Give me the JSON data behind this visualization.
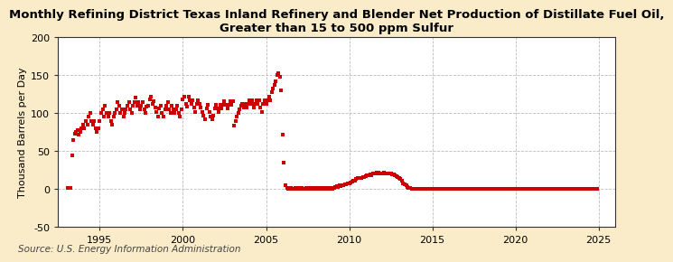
{
  "title": "Monthly Refining District Texas Inland Refinery and Blender Net Production of Distillate Fuel Oil,\nGreater than 15 to 500 ppm Sulfur",
  "ylabel": "Thousand Barrels per Day",
  "source": "Source: U.S. Energy Information Administration",
  "outer_bg": "#faecc8",
  "plot_bg": "#ffffff",
  "marker_color": "#cc0000",
  "ylim": [
    -50,
    200
  ],
  "yticks": [
    -50,
    0,
    50,
    100,
    150,
    200
  ],
  "xlim_start": 1992.5,
  "xlim_end": 2026.0,
  "xticks": [
    1995,
    2000,
    2005,
    2010,
    2015,
    2020,
    2025
  ],
  "title_fontsize": 9.5,
  "ylabel_fontsize": 8.0,
  "source_fontsize": 7.5,
  "tick_fontsize": 8,
  "series": [
    [
      1993.08,
      1
    ],
    [
      1993.17,
      1
    ],
    [
      1993.25,
      1
    ],
    [
      1993.33,
      44
    ],
    [
      1993.42,
      65
    ],
    [
      1993.5,
      73
    ],
    [
      1993.58,
      75
    ],
    [
      1993.67,
      78
    ],
    [
      1993.75,
      72
    ],
    [
      1993.83,
      75
    ],
    [
      1993.92,
      80
    ],
    [
      1994.0,
      85
    ],
    [
      1994.08,
      80
    ],
    [
      1994.17,
      90
    ],
    [
      1994.25,
      85
    ],
    [
      1994.33,
      95
    ],
    [
      1994.42,
      100
    ],
    [
      1994.5,
      90
    ],
    [
      1994.58,
      85
    ],
    [
      1994.67,
      90
    ],
    [
      1994.75,
      80
    ],
    [
      1994.83,
      75
    ],
    [
      1994.92,
      80
    ],
    [
      1995.0,
      90
    ],
    [
      1995.08,
      100
    ],
    [
      1995.17,
      105
    ],
    [
      1995.25,
      95
    ],
    [
      1995.33,
      110
    ],
    [
      1995.42,
      100
    ],
    [
      1995.5,
      95
    ],
    [
      1995.58,
      100
    ],
    [
      1995.67,
      90
    ],
    [
      1995.75,
      85
    ],
    [
      1995.83,
      95
    ],
    [
      1995.92,
      100
    ],
    [
      1996.0,
      105
    ],
    [
      1996.08,
      115
    ],
    [
      1996.17,
      110
    ],
    [
      1996.25,
      100
    ],
    [
      1996.33,
      105
    ],
    [
      1996.42,
      95
    ],
    [
      1996.5,
      100
    ],
    [
      1996.58,
      105
    ],
    [
      1996.67,
      110
    ],
    [
      1996.75,
      115
    ],
    [
      1996.83,
      105
    ],
    [
      1996.92,
      100
    ],
    [
      1997.0,
      110
    ],
    [
      1997.08,
      115
    ],
    [
      1997.17,
      120
    ],
    [
      1997.25,
      110
    ],
    [
      1997.33,
      115
    ],
    [
      1997.42,
      105
    ],
    [
      1997.5,
      110
    ],
    [
      1997.58,
      115
    ],
    [
      1997.67,
      105
    ],
    [
      1997.75,
      100
    ],
    [
      1997.83,
      108
    ],
    [
      1997.92,
      110
    ],
    [
      1998.0,
      118
    ],
    [
      1998.08,
      122
    ],
    [
      1998.17,
      112
    ],
    [
      1998.25,
      116
    ],
    [
      1998.33,
      107
    ],
    [
      1998.42,
      102
    ],
    [
      1998.5,
      96
    ],
    [
      1998.58,
      106
    ],
    [
      1998.67,
      110
    ],
    [
      1998.75,
      100
    ],
    [
      1998.83,
      95
    ],
    [
      1998.92,
      105
    ],
    [
      1999.0,
      110
    ],
    [
      1999.08,
      115
    ],
    [
      1999.17,
      105
    ],
    [
      1999.25,
      100
    ],
    [
      1999.33,
      110
    ],
    [
      1999.42,
      105
    ],
    [
      1999.5,
      100
    ],
    [
      1999.58,
      105
    ],
    [
      1999.67,
      110
    ],
    [
      1999.75,
      100
    ],
    [
      1999.83,
      95
    ],
    [
      1999.92,
      105
    ],
    [
      2000.0,
      118
    ],
    [
      2000.08,
      122
    ],
    [
      2000.17,
      112
    ],
    [
      2000.25,
      108
    ],
    [
      2000.33,
      122
    ],
    [
      2000.42,
      117
    ],
    [
      2000.5,
      112
    ],
    [
      2000.58,
      117
    ],
    [
      2000.67,
      107
    ],
    [
      2000.75,
      102
    ],
    [
      2000.83,
      112
    ],
    [
      2000.92,
      117
    ],
    [
      2001.0,
      112
    ],
    [
      2001.08,
      107
    ],
    [
      2001.17,
      102
    ],
    [
      2001.25,
      97
    ],
    [
      2001.33,
      92
    ],
    [
      2001.42,
      106
    ],
    [
      2001.5,
      111
    ],
    [
      2001.58,
      101
    ],
    [
      2001.67,
      96
    ],
    [
      2001.75,
      92
    ],
    [
      2001.83,
      97
    ],
    [
      2001.92,
      106
    ],
    [
      2002.0,
      111
    ],
    [
      2002.08,
      106
    ],
    [
      2002.17,
      101
    ],
    [
      2002.25,
      111
    ],
    [
      2002.33,
      106
    ],
    [
      2002.42,
      111
    ],
    [
      2002.5,
      116
    ],
    [
      2002.58,
      111
    ],
    [
      2002.67,
      106
    ],
    [
      2002.75,
      111
    ],
    [
      2002.83,
      116
    ],
    [
      2002.92,
      111
    ],
    [
      2003.0,
      116
    ],
    [
      2003.08,
      84
    ],
    [
      2003.17,
      90
    ],
    [
      2003.25,
      95
    ],
    [
      2003.33,
      100
    ],
    [
      2003.42,
      105
    ],
    [
      2003.5,
      110
    ],
    [
      2003.58,
      112
    ],
    [
      2003.67,
      107
    ],
    [
      2003.75,
      112
    ],
    [
      2003.83,
      107
    ],
    [
      2003.92,
      112
    ],
    [
      2004.0,
      117
    ],
    [
      2004.08,
      112
    ],
    [
      2004.17,
      117
    ],
    [
      2004.25,
      107
    ],
    [
      2004.33,
      112
    ],
    [
      2004.42,
      117
    ],
    [
      2004.5,
      112
    ],
    [
      2004.58,
      117
    ],
    [
      2004.67,
      107
    ],
    [
      2004.75,
      102
    ],
    [
      2004.83,
      112
    ],
    [
      2004.92,
      117
    ],
    [
      2005.0,
      112
    ],
    [
      2005.08,
      117
    ],
    [
      2005.17,
      122
    ],
    [
      2005.25,
      117
    ],
    [
      2005.33,
      127
    ],
    [
      2005.42,
      132
    ],
    [
      2005.5,
      137
    ],
    [
      2005.58,
      142
    ],
    [
      2005.67,
      150
    ],
    [
      2005.75,
      153
    ],
    [
      2005.83,
      148
    ],
    [
      2005.92,
      130
    ],
    [
      2006.0,
      72
    ],
    [
      2006.08,
      35
    ],
    [
      2006.17,
      5
    ],
    [
      2006.25,
      2
    ],
    [
      2006.33,
      0
    ],
    [
      2006.42,
      0
    ],
    [
      2006.5,
      1
    ],
    [
      2006.58,
      0
    ],
    [
      2006.67,
      0
    ],
    [
      2006.75,
      1
    ],
    [
      2006.83,
      0
    ],
    [
      2006.92,
      0
    ],
    [
      2007.0,
      1
    ],
    [
      2007.08,
      0
    ],
    [
      2007.17,
      1
    ],
    [
      2007.25,
      0
    ],
    [
      2007.33,
      0
    ],
    [
      2007.42,
      1
    ],
    [
      2007.5,
      0
    ],
    [
      2007.58,
      1
    ],
    [
      2007.67,
      0
    ],
    [
      2007.75,
      1
    ],
    [
      2007.83,
      0
    ],
    [
      2007.92,
      1
    ],
    [
      2008.0,
      0
    ],
    [
      2008.08,
      1
    ],
    [
      2008.17,
      0
    ],
    [
      2008.25,
      1
    ],
    [
      2008.33,
      0
    ],
    [
      2008.42,
      1
    ],
    [
      2008.5,
      0
    ],
    [
      2008.58,
      1
    ],
    [
      2008.67,
      0
    ],
    [
      2008.75,
      1
    ],
    [
      2008.83,
      0
    ],
    [
      2008.92,
      1
    ],
    [
      2009.0,
      0
    ],
    [
      2009.08,
      1
    ],
    [
      2009.17,
      3
    ],
    [
      2009.25,
      4
    ],
    [
      2009.33,
      3
    ],
    [
      2009.42,
      5
    ],
    [
      2009.5,
      4
    ],
    [
      2009.58,
      5
    ],
    [
      2009.67,
      5
    ],
    [
      2009.75,
      6
    ],
    [
      2009.83,
      6
    ],
    [
      2009.92,
      7
    ],
    [
      2010.0,
      7
    ],
    [
      2010.08,
      9
    ],
    [
      2010.17,
      10
    ],
    [
      2010.25,
      11
    ],
    [
      2010.33,
      11
    ],
    [
      2010.42,
      13
    ],
    [
      2010.5,
      14
    ],
    [
      2010.58,
      14
    ],
    [
      2010.67,
      15
    ],
    [
      2010.75,
      15
    ],
    [
      2010.83,
      16
    ],
    [
      2010.92,
      16
    ],
    [
      2011.0,
      17
    ],
    [
      2011.08,
      18
    ],
    [
      2011.17,
      18
    ],
    [
      2011.25,
      19
    ],
    [
      2011.33,
      18
    ],
    [
      2011.42,
      20
    ],
    [
      2011.5,
      21
    ],
    [
      2011.58,
      21
    ],
    [
      2011.67,
      22
    ],
    [
      2011.75,
      22
    ],
    [
      2011.83,
      21
    ],
    [
      2011.92,
      21
    ],
    [
      2012.0,
      21
    ],
    [
      2012.08,
      22
    ],
    [
      2012.17,
      21
    ],
    [
      2012.25,
      21
    ],
    [
      2012.33,
      20
    ],
    [
      2012.42,
      20
    ],
    [
      2012.5,
      20
    ],
    [
      2012.58,
      19
    ],
    [
      2012.67,
      19
    ],
    [
      2012.75,
      18
    ],
    [
      2012.83,
      17
    ],
    [
      2012.92,
      16
    ],
    [
      2013.0,
      15
    ],
    [
      2013.08,
      13
    ],
    [
      2013.17,
      11
    ],
    [
      2013.25,
      8
    ],
    [
      2013.33,
      6
    ],
    [
      2013.42,
      5
    ],
    [
      2013.5,
      3
    ],
    [
      2013.58,
      2
    ],
    [
      2013.67,
      1
    ],
    [
      2013.75,
      0
    ],
    [
      2013.83,
      0
    ],
    [
      2013.92,
      0
    ],
    [
      2014.0,
      0
    ],
    [
      2014.08,
      0
    ],
    [
      2014.17,
      0
    ],
    [
      2014.25,
      0
    ],
    [
      2014.33,
      0
    ],
    [
      2014.42,
      0
    ],
    [
      2014.5,
      0
    ],
    [
      2014.58,
      0
    ],
    [
      2014.67,
      0
    ],
    [
      2014.75,
      0
    ],
    [
      2014.83,
      0
    ],
    [
      2014.92,
      0
    ],
    [
      2015.0,
      0
    ],
    [
      2015.08,
      0
    ],
    [
      2015.17,
      0
    ],
    [
      2015.25,
      0
    ],
    [
      2015.33,
      0
    ],
    [
      2015.42,
      0
    ],
    [
      2015.5,
      0
    ],
    [
      2015.58,
      0
    ],
    [
      2015.67,
      0
    ],
    [
      2015.75,
      0
    ],
    [
      2015.83,
      0
    ],
    [
      2015.92,
      0
    ],
    [
      2016.0,
      0
    ],
    [
      2016.08,
      0
    ],
    [
      2016.17,
      0
    ],
    [
      2016.25,
      0
    ],
    [
      2016.33,
      0
    ],
    [
      2016.42,
      0
    ],
    [
      2016.5,
      0
    ],
    [
      2016.58,
      0
    ],
    [
      2016.67,
      0
    ],
    [
      2016.75,
      0
    ],
    [
      2016.83,
      0
    ],
    [
      2016.92,
      0
    ],
    [
      2017.0,
      0
    ],
    [
      2017.08,
      0
    ],
    [
      2017.17,
      0
    ],
    [
      2017.25,
      0
    ],
    [
      2017.33,
      0
    ],
    [
      2017.42,
      0
    ],
    [
      2017.5,
      0
    ],
    [
      2017.58,
      0
    ],
    [
      2017.67,
      0
    ],
    [
      2017.75,
      0
    ],
    [
      2017.83,
      0
    ],
    [
      2017.92,
      0
    ],
    [
      2018.0,
      0
    ],
    [
      2018.08,
      0
    ],
    [
      2018.17,
      0
    ],
    [
      2018.25,
      0
    ],
    [
      2018.33,
      0
    ],
    [
      2018.42,
      0
    ],
    [
      2018.5,
      0
    ],
    [
      2018.58,
      0
    ],
    [
      2018.67,
      0
    ],
    [
      2018.75,
      0
    ],
    [
      2018.83,
      0
    ],
    [
      2018.92,
      0
    ],
    [
      2019.0,
      0
    ],
    [
      2019.08,
      0
    ],
    [
      2019.17,
      0
    ],
    [
      2019.25,
      0
    ],
    [
      2019.33,
      0
    ],
    [
      2019.42,
      0
    ],
    [
      2019.5,
      0
    ],
    [
      2019.58,
      0
    ],
    [
      2019.67,
      0
    ],
    [
      2019.75,
      0
    ],
    [
      2019.83,
      0
    ],
    [
      2019.92,
      0
    ],
    [
      2020.0,
      0
    ],
    [
      2020.08,
      0
    ],
    [
      2020.17,
      0
    ],
    [
      2020.25,
      0
    ],
    [
      2020.33,
      0
    ],
    [
      2020.42,
      0
    ],
    [
      2020.5,
      0
    ],
    [
      2020.58,
      0
    ],
    [
      2020.67,
      0
    ],
    [
      2020.75,
      0
    ],
    [
      2020.83,
      0
    ],
    [
      2020.92,
      0
    ],
    [
      2021.0,
      0
    ],
    [
      2021.08,
      0
    ],
    [
      2021.17,
      0
    ],
    [
      2021.25,
      0
    ],
    [
      2021.33,
      0
    ],
    [
      2021.42,
      0
    ],
    [
      2021.5,
      0
    ],
    [
      2021.58,
      0
    ],
    [
      2021.67,
      0
    ],
    [
      2021.75,
      0
    ],
    [
      2021.83,
      0
    ],
    [
      2021.92,
      0
    ],
    [
      2022.0,
      0
    ],
    [
      2022.08,
      0
    ],
    [
      2022.17,
      0
    ],
    [
      2022.25,
      0
    ],
    [
      2022.33,
      0
    ],
    [
      2022.42,
      0
    ],
    [
      2022.5,
      0
    ],
    [
      2022.58,
      0
    ],
    [
      2022.67,
      0
    ],
    [
      2022.75,
      0
    ],
    [
      2022.83,
      0
    ],
    [
      2022.92,
      0
    ],
    [
      2023.0,
      0
    ],
    [
      2023.08,
      0
    ],
    [
      2023.17,
      0
    ],
    [
      2023.25,
      0
    ],
    [
      2023.33,
      0
    ],
    [
      2023.42,
      0
    ],
    [
      2023.5,
      0
    ],
    [
      2023.58,
      0
    ],
    [
      2023.67,
      0
    ],
    [
      2023.75,
      0
    ],
    [
      2023.83,
      0
    ],
    [
      2023.92,
      0
    ],
    [
      2024.0,
      0
    ],
    [
      2024.08,
      0
    ],
    [
      2024.17,
      0
    ],
    [
      2024.25,
      0
    ],
    [
      2024.33,
      0
    ],
    [
      2024.42,
      0
    ],
    [
      2024.5,
      0
    ],
    [
      2024.58,
      0
    ],
    [
      2024.67,
      0
    ],
    [
      2024.75,
      0
    ],
    [
      2024.83,
      0
    ],
    [
      2024.92,
      0
    ]
  ]
}
